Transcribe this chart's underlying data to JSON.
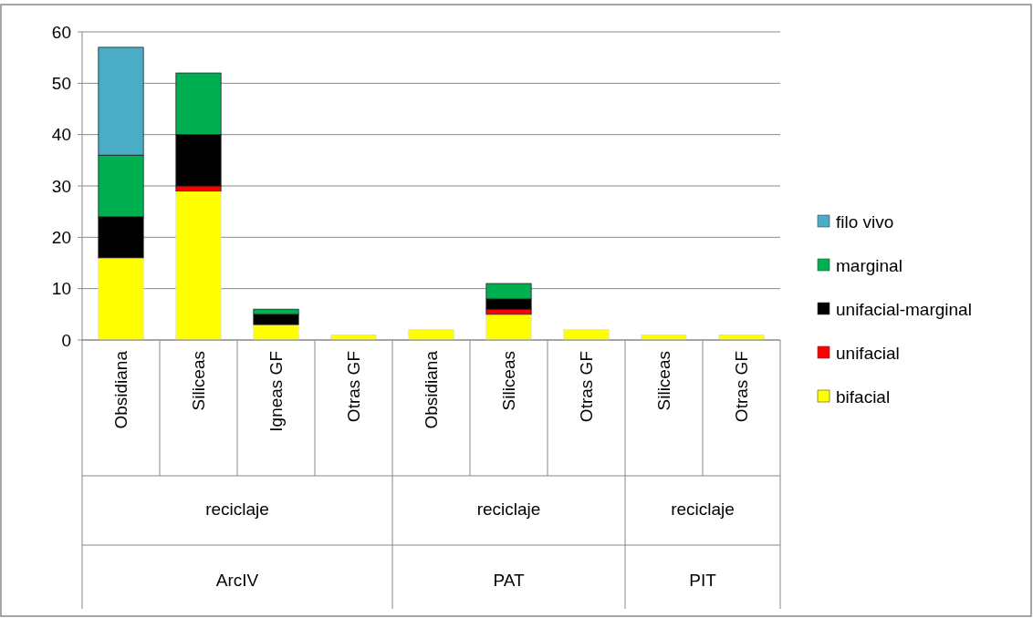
{
  "chart_data": {
    "type": "bar",
    "stacked": true,
    "categories": [
      "Obsidiana",
      "Siliceas",
      "Igneas GF",
      "Otras GF",
      "Obsidiana",
      "Siliceas",
      "Otras GF",
      "Siliceas",
      "Otras GF"
    ],
    "series": [
      {
        "name": "bifacial",
        "color": "#ffff00",
        "values": [
          16,
          29,
          3,
          1,
          2,
          5,
          2,
          1,
          1
        ]
      },
      {
        "name": "unifacial",
        "color": "#ff0000",
        "values": [
          0,
          1,
          0,
          0,
          0,
          1,
          0,
          0,
          0
        ]
      },
      {
        "name": "unifacial-marginal",
        "color": "#000000",
        "values": [
          8,
          10,
          2,
          0,
          0,
          2,
          0,
          0,
          0
        ]
      },
      {
        "name": "marginal",
        "color": "#00b050",
        "values": [
          12,
          12,
          1,
          0,
          0,
          3,
          0,
          0,
          0
        ]
      },
      {
        "name": "filo vivo",
        "color": "#4bacc6",
        "values": [
          21,
          0,
          0,
          0,
          0,
          0,
          0,
          0,
          0
        ]
      }
    ],
    "ylim": [
      0,
      60
    ],
    "yticks": [
      0,
      10,
      20,
      30,
      40,
      50,
      60
    ],
    "grid": "y",
    "legend": "right",
    "annotations": [
      "reciclaje",
      "ArcIV",
      "reciclaje",
      "PAT",
      "reciclaje",
      "PIT"
    ]
  }
}
